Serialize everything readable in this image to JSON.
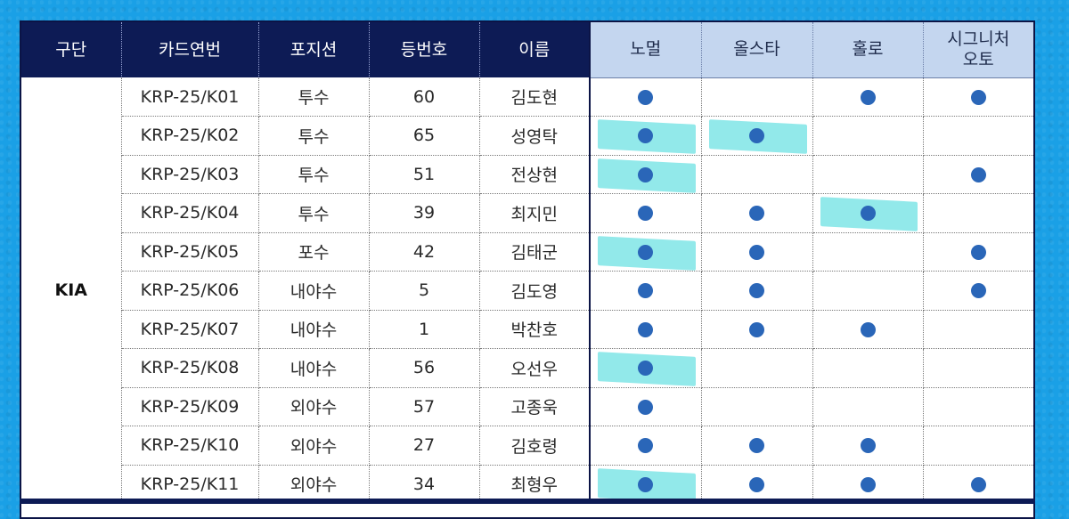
{
  "colors": {
    "background": "#1aa0e6",
    "header_dark": "#0d1b55",
    "header_light": "#c4d6ef",
    "dot": "#2a66b8",
    "highlight": "#7fe5e6"
  },
  "headers": [
    "구단",
    "카드연번",
    "포지션",
    "등번호",
    "이름",
    "노멀",
    "올스타",
    "홀로",
    "시그니처\n오토"
  ],
  "header_lines": {
    "c0": "구단",
    "c1": "카드연번",
    "c2": "포지션",
    "c3": "등번호",
    "c4": "이름",
    "c5": "노멀",
    "c6": "올스타",
    "c7": "홀로",
    "c8a": "시그니처",
    "c8b": "오토"
  },
  "team": "KIA",
  "rows": [
    {
      "card": "KRP-25/K01",
      "position": "투수",
      "number": "60",
      "name": "김도현",
      "normal": true,
      "allstar": false,
      "holo": true,
      "auto": true,
      "hl": []
    },
    {
      "card": "KRP-25/K02",
      "position": "투수",
      "number": "65",
      "name": "성영탁",
      "normal": true,
      "allstar": true,
      "holo": false,
      "auto": false,
      "hl": [
        "normal",
        "allstar"
      ]
    },
    {
      "card": "KRP-25/K03",
      "position": "투수",
      "number": "51",
      "name": "전상현",
      "normal": true,
      "allstar": false,
      "holo": false,
      "auto": true,
      "hl": [
        "normal"
      ]
    },
    {
      "card": "KRP-25/K04",
      "position": "투수",
      "number": "39",
      "name": "최지민",
      "normal": true,
      "allstar": true,
      "holo": true,
      "auto": false,
      "hl": [
        "holo"
      ]
    },
    {
      "card": "KRP-25/K05",
      "position": "포수",
      "number": "42",
      "name": "김태군",
      "normal": true,
      "allstar": true,
      "holo": false,
      "auto": true,
      "hl": [
        "normal"
      ]
    },
    {
      "card": "KRP-25/K06",
      "position": "내야수",
      "number": "5",
      "name": "김도영",
      "normal": true,
      "allstar": true,
      "holo": false,
      "auto": true,
      "hl": []
    },
    {
      "card": "KRP-25/K07",
      "position": "내야수",
      "number": "1",
      "name": "박찬호",
      "normal": true,
      "allstar": true,
      "holo": true,
      "auto": false,
      "hl": []
    },
    {
      "card": "KRP-25/K08",
      "position": "내야수",
      "number": "56",
      "name": "오선우",
      "normal": true,
      "allstar": false,
      "holo": false,
      "auto": false,
      "hl": [
        "normal"
      ]
    },
    {
      "card": "KRP-25/K09",
      "position": "외야수",
      "number": "57",
      "name": "고종욱",
      "normal": true,
      "allstar": false,
      "holo": false,
      "auto": false,
      "hl": []
    },
    {
      "card": "KRP-25/K10",
      "position": "외야수",
      "number": "27",
      "name": "김호령",
      "normal": true,
      "allstar": true,
      "holo": true,
      "auto": false,
      "hl": []
    },
    {
      "card": "KRP-25/K11",
      "position": "외야수",
      "number": "34",
      "name": "최형우",
      "normal": true,
      "allstar": true,
      "holo": true,
      "auto": true,
      "hl": [
        "normal"
      ]
    }
  ]
}
